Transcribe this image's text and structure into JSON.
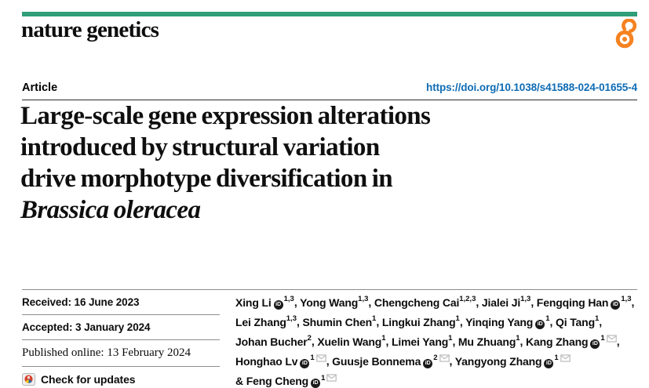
{
  "header": {
    "journal": "nature genetics",
    "article_type": "Article",
    "doi": "https://doi.org/10.1038/s41588-024-01655-4"
  },
  "title": {
    "lines": [
      "Large-scale gene expression alterations",
      "introduced by structural variation",
      "drive morphotype diversification in"
    ],
    "italic": "Brassica oleracea"
  },
  "dates": {
    "received": "Received: 16 June 2023",
    "accepted": "Accepted: 3 January 2024",
    "published": "Published online: 13 February 2024",
    "check_updates": "Check for updates"
  },
  "authors": {
    "list": [
      {
        "name": "Xing Li",
        "orcid": true,
        "sup": "1,3",
        "mail": false,
        "sep": ", ",
        "br": false
      },
      {
        "name": "Yong Wang",
        "orcid": false,
        "sup": "1,3",
        "mail": false,
        "sep": ", ",
        "br": false
      },
      {
        "name": "Chengcheng Cai",
        "orcid": false,
        "sup": "1,2,3",
        "mail": false,
        "sep": ", ",
        "br": false
      },
      {
        "name": "Jialei Ji",
        "orcid": false,
        "sup": "1,3",
        "mail": false,
        "sep": ", ",
        "br": false
      },
      {
        "name": "Fengqing Han",
        "orcid": true,
        "sup": "1,3",
        "mail": false,
        "sep": ",",
        "br": true
      },
      {
        "name": "Lei Zhang",
        "orcid": false,
        "sup": "1,3",
        "mail": false,
        "sep": ", ",
        "br": false
      },
      {
        "name": "Shumin Chen",
        "orcid": false,
        "sup": "1",
        "mail": false,
        "sep": ", ",
        "br": false
      },
      {
        "name": "Lingkui Zhang",
        "orcid": false,
        "sup": "1",
        "mail": false,
        "sep": ", ",
        "br": false
      },
      {
        "name": "Yinqing Yang",
        "orcid": true,
        "sup": "1",
        "mail": false,
        "sep": ", ",
        "br": false
      },
      {
        "name": "Qi Tang",
        "orcid": false,
        "sup": "1",
        "mail": false,
        "sep": ",",
        "br": true
      },
      {
        "name": "Johan Bucher",
        "orcid": false,
        "sup": "2",
        "mail": false,
        "sep": ", ",
        "br": false
      },
      {
        "name": "Xuelin Wang",
        "orcid": false,
        "sup": "1",
        "mail": false,
        "sep": ", ",
        "br": false
      },
      {
        "name": "Limei Yang",
        "orcid": false,
        "sup": "1",
        "mail": false,
        "sep": ", ",
        "br": false
      },
      {
        "name": "Mu Zhuang",
        "orcid": false,
        "sup": "1",
        "mail": false,
        "sep": ", ",
        "br": false
      },
      {
        "name": "Kang Zhang",
        "orcid": true,
        "sup": "1",
        "mail": true,
        "sep": ",",
        "br": true
      },
      {
        "name": "Honghao Lv",
        "orcid": true,
        "sup": "1",
        "mail": true,
        "sep": ", ",
        "br": false
      },
      {
        "name": "Guusje Bonnema",
        "orcid": true,
        "sup": "2",
        "mail": true,
        "sep": ", ",
        "br": false
      },
      {
        "name": "Yangyong Zhang",
        "orcid": true,
        "sup": "1",
        "mail": true,
        "sep": "",
        "br": true
      },
      {
        "name": "Feng Cheng",
        "prefix": "& ",
        "orcid": true,
        "sup": "1",
        "mail": true,
        "sep": "",
        "br": false
      }
    ]
  },
  "icons": {
    "open_access": "open-padlock",
    "orcid": "orcid-id-circle",
    "email": "envelope",
    "crossmark": "check-for-updates-logo"
  },
  "colors": {
    "accent_teal": "#2f9e79",
    "link_blue": "#0f6cb4",
    "open_access_orange": "#f58220",
    "orcid_black": "#1a1a1a",
    "envelope_gray": "#c0c0c0",
    "crossmark_red": "#d6402d"
  }
}
